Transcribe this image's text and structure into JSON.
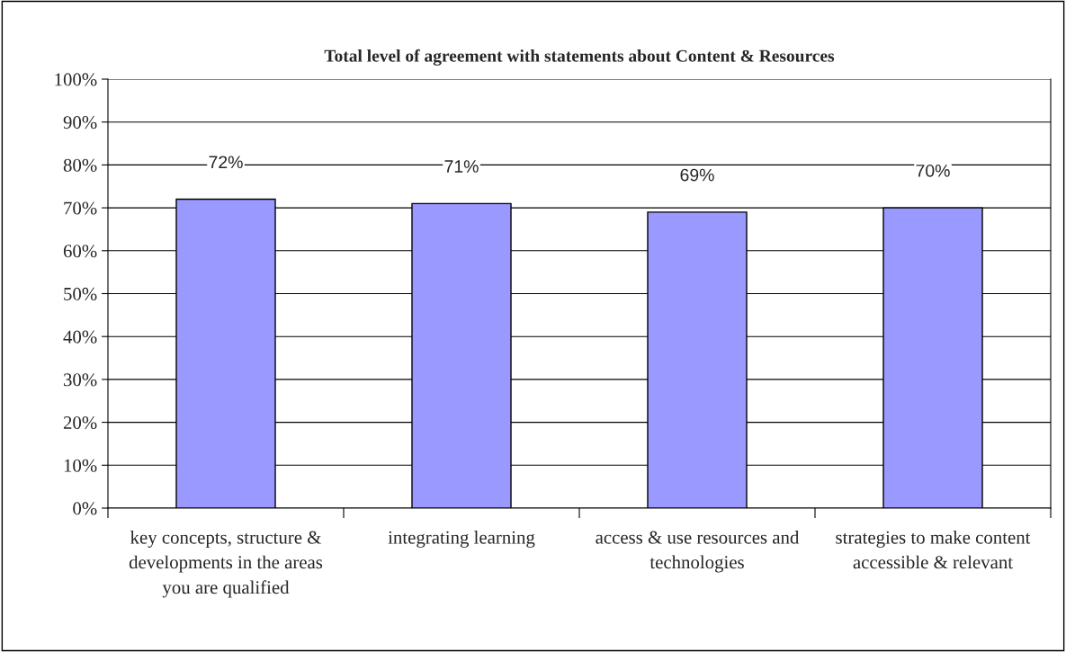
{
  "chart_data": {
    "type": "bar",
    "title": "Total level of agreement with statements about Content & Resources",
    "categories": [
      "key concepts, structure & developments in the areas you are qualified",
      "integrating learning",
      "access & use resources and technologies",
      "strategies to make content accessible & relevant"
    ],
    "values": [
      72,
      71,
      69,
      70
    ],
    "value_labels": [
      "72%",
      "71%",
      "69%",
      "70%"
    ],
    "color": "#9999ff",
    "ylim": [
      0,
      100
    ],
    "yticks": [
      {
        "value": 0,
        "label": "0%"
      },
      {
        "value": 10,
        "label": "10%"
      },
      {
        "value": 20,
        "label": "20%"
      },
      {
        "value": 30,
        "label": "30%"
      },
      {
        "value": 40,
        "label": "40%"
      },
      {
        "value": 50,
        "label": "50%"
      },
      {
        "value": 60,
        "label": "60%"
      },
      {
        "value": 70,
        "label": "70%"
      },
      {
        "value": 80,
        "label": "80%"
      },
      {
        "value": 90,
        "label": "90%"
      },
      {
        "value": 100,
        "label": "100%"
      }
    ],
    "grid": "y",
    "legend": false
  }
}
